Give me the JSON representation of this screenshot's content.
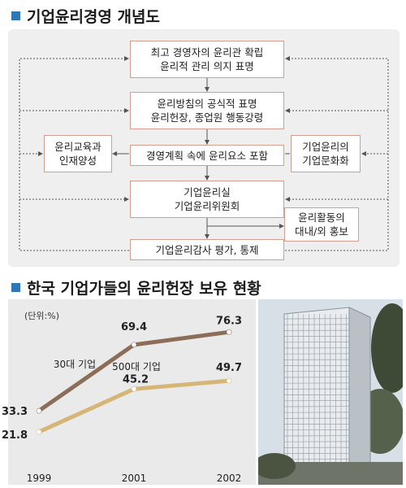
{
  "section1": {
    "title": "기업윤리경영 개념도",
    "boxes": {
      "top": [
        "최고 경영자의 윤리관 확립",
        "윤리적 관리 의지 표명"
      ],
      "policy": [
        "윤리방침의 공식적 표명",
        "윤리헌장, 종업원 행동강령"
      ],
      "education": [
        "윤리교육과",
        "인재양성"
      ],
      "planning": [
        "경영계획 속에 윤리요소 포함"
      ],
      "culture": [
        "기업윤리의",
        "기업문화화"
      ],
      "office": [
        "기업윤리실",
        "기업윤리위원회"
      ],
      "pr": [
        "윤리활동의",
        "대내/외 홍보"
      ],
      "audit": [
        "기업윤리감사 평가, 통제"
      ]
    },
    "colors": {
      "box_border": "#d49e8e",
      "arrow": "#555555",
      "panel": "#efefef"
    }
  },
  "section2": {
    "title": "한국 기업가들의 윤리헌장 보유 현황",
    "photo_alt_icon": "office-building-photo"
  },
  "chart_data": {
    "type": "line",
    "unit_label": "(단위:%)",
    "x": [
      "1999",
      "2001",
      "2002"
    ],
    "ylim": [
      0,
      100
    ],
    "series": [
      {
        "name": "30대 기업",
        "values": [
          33.3,
          69.4,
          76.3
        ],
        "color": "#8b6d58"
      },
      {
        "name": "500대 기업",
        "values": [
          21.8,
          45.2,
          49.7
        ],
        "color": "#d6b677"
      }
    ],
    "value_labels": [
      [
        "33.3",
        "69.4",
        "76.3"
      ],
      [
        "21.8",
        "45.2",
        "49.7"
      ]
    ],
    "grid": false
  }
}
